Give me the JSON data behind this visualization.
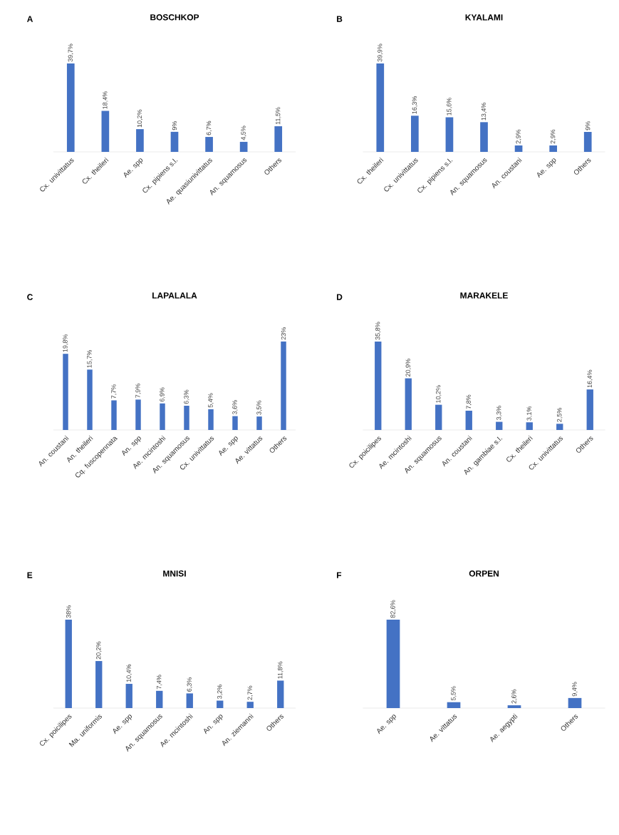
{
  "chart_data": [
    {
      "type": "bar",
      "title": "BOSCHKOP",
      "annotations": [
        "A"
      ],
      "color": "#4472c4",
      "categories": [
        "Cx. univittatus",
        "Cx. theileri",
        "Ae. spp",
        "Cx. pipiens s.l.",
        "Ae. quasiunivittatus",
        "An. squamosus",
        "Others"
      ],
      "values": [
        39.7,
        18.4,
        10.2,
        9,
        6.7,
        4.5,
        11.5
      ],
      "value_labels": [
        "39,7%",
        "18,4%",
        "10,2%",
        "9%",
        "6,7%",
        "4,5%",
        "11,5%"
      ]
    },
    {
      "type": "bar",
      "title": "KYALAMI",
      "annotations": [
        "B"
      ],
      "color": "#4472c4",
      "categories": [
        "Cx. theileri",
        "Cx. univittatus",
        "Cx. pipiens s.l.",
        "An. squamosus",
        "An. coustani",
        "Ae. spp",
        "Others"
      ],
      "values": [
        39.9,
        16.3,
        15.6,
        13.4,
        2.9,
        2.9,
        9
      ],
      "value_labels": [
        "39,9%",
        "16,3%",
        "15,6%",
        "13,4%",
        "2,9%",
        "2,9%",
        "9%"
      ]
    },
    {
      "type": "bar",
      "title": "LAPALALA",
      "annotations": [
        "C"
      ],
      "color": "#4472c4",
      "categories": [
        "An. coustani",
        "An. theileri",
        "Cq. fuscopennata",
        "An. spp",
        "Ae. mcintoshi",
        "An. squamosus",
        "Cx. univittatus",
        "Ae. spp",
        "Ae. vittatus",
        "Others"
      ],
      "values": [
        19.8,
        15.7,
        7.7,
        7.9,
        6.9,
        6.3,
        5.4,
        3.6,
        3.5,
        23
      ],
      "value_labels": [
        "19,8%",
        "15,7%",
        "7,7%",
        "7,9%",
        "6,9%",
        "6,3%",
        "5,4%",
        "3,6%",
        "3,5%",
        "23%"
      ]
    },
    {
      "type": "bar",
      "title": "MARAKELE",
      "annotations": [
        "D"
      ],
      "color": "#4472c4",
      "categories": [
        "Cx. poicilipes",
        "Ae. mcintoshi",
        "An. squamosus",
        "An. coustani",
        "An. gambiae s.l.",
        "Cx. theileri",
        "Cx. univittatus",
        "Others"
      ],
      "values": [
        35.8,
        20.9,
        10.2,
        7.8,
        3.3,
        3.1,
        2.5,
        16.4
      ],
      "value_labels": [
        "35,8%",
        "20,9%",
        "10,2%",
        "7,8%",
        "3,3%",
        "3,1%",
        "2,5%",
        "16,4%"
      ]
    },
    {
      "type": "bar",
      "title": "MNISI",
      "annotations": [
        "E"
      ],
      "color": "#4472c4",
      "categories": [
        "Cx. poicilipes",
        "Ma. uniformis",
        "Ae. spp",
        "An. squamosus",
        "Ae. mcintoshi",
        "An. spp",
        "An. ziemanni",
        "Others"
      ],
      "values": [
        38,
        20.2,
        10.4,
        7.4,
        6.3,
        3.2,
        2.7,
        11.8
      ],
      "value_labels": [
        "38%",
        "20,2%",
        "10,4%",
        "7,4%",
        "6,3%",
        "3,2%",
        "2,7%",
        "11,8%"
      ]
    },
    {
      "type": "bar",
      "title": "ORPEN",
      "annotations": [
        "F"
      ],
      "color": "#4472c4",
      "categories": [
        "Ae. spp",
        "Ae. vittatus",
        "Ae. aegypti",
        "Others"
      ],
      "values": [
        82.6,
        5.5,
        2.6,
        9.4
      ],
      "value_labels": [
        "82,6%",
        "5,5%",
        "2,6%",
        "9,4%"
      ]
    }
  ]
}
